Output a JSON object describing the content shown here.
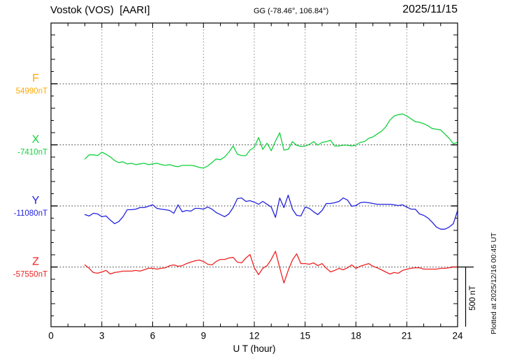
{
  "header": {
    "station": "Vostok (VOS)  [AARI]",
    "coords": "GG (-78.46°, 106.84°)",
    "date": "2025/11/15"
  },
  "axes": {
    "xlabel": "U T (hour)",
    "x_tick_hours": [
      0,
      3,
      6,
      9,
      12,
      15,
      18,
      21,
      24
    ],
    "x_range_hours": [
      0,
      24
    ],
    "minor_tick_every_hours": 1,
    "nT_tick_every": 100,
    "grid": "dotted verticals every 3 h, dotted horizontal baselines"
  },
  "channels": [
    {
      "id": "F",
      "letter": "F",
      "value_label": "54990nT",
      "color": "#ffaa00"
    },
    {
      "id": "X",
      "letter": "X",
      "value_label": "-7410nT",
      "color": "#15d03f"
    },
    {
      "id": "Y",
      "letter": "Y",
      "value_label": "-11080nT",
      "color": "#2222dd"
    },
    {
      "id": "Z",
      "letter": "Z",
      "value_label": "-57550nT",
      "color": "#ee2222"
    }
  ],
  "scale_bar": {
    "label": "500 nT",
    "nT": 500
  },
  "footer_right": "Plotted at 2025/12/16 00:45 UT",
  "chart_data": {
    "type": "line",
    "title": "Vostok (VOS)  [AARI]",
    "xlabel": "U T (hour)",
    "x_range_hours": [
      0,
      24
    ],
    "x_tick_hours": [
      0,
      3,
      6,
      9,
      12,
      15,
      18,
      21,
      24
    ],
    "y_division_nT": 500,
    "legend_position": "left margin, colored channel letters",
    "sample_start_hour": 2.0,
    "sample_step_hour": 0.25,
    "series": [
      {
        "name": "F",
        "color": "#ffaa00",
        "baseline_nT": 54990,
        "deviations_nT": []
      },
      {
        "name": "X",
        "color": "#15d03f",
        "baseline_nT": -7410,
        "deviations_nT": [
          -116,
          -82,
          -82,
          -88,
          -60,
          -77,
          -99,
          -128,
          -145,
          -139,
          -156,
          -151,
          -162,
          -156,
          -151,
          -162,
          -156,
          -151,
          -162,
          -168,
          -162,
          -173,
          -179,
          -168,
          -168,
          -168,
          -173,
          -185,
          -190,
          -173,
          -145,
          -116,
          -122,
          -99,
          -60,
          -9,
          -77,
          -88,
          -88,
          -43,
          -20,
          60,
          -37,
          14,
          -48,
          31,
          99,
          -43,
          -37,
          26,
          -3,
          -14,
          -9,
          3,
          26,
          -3,
          20,
          26,
          37,
          -9,
          -9,
          -3,
          -3,
          -9,
          -3,
          20,
          26,
          54,
          65,
          88,
          111,
          145,
          202,
          236,
          247,
          253,
          236,
          213,
          190,
          185,
          173,
          156,
          133,
          128,
          122,
          88,
          54,
          9,
          20
        ]
      },
      {
        "name": "Y",
        "color": "#2222dd",
        "baseline_nT": -11080,
        "deviations_nT": [
          -71,
          -82,
          -60,
          -65,
          -88,
          -82,
          -116,
          -145,
          -128,
          -88,
          -31,
          -31,
          -26,
          -14,
          -14,
          -3,
          9,
          -20,
          -26,
          -31,
          -37,
          -60,
          9,
          -48,
          -37,
          -43,
          -20,
          -20,
          -26,
          -9,
          -26,
          -54,
          -71,
          -88,
          -65,
          -14,
          60,
          65,
          37,
          43,
          31,
          14,
          37,
          14,
          -9,
          -94,
          65,
          -14,
          88,
          -26,
          -77,
          -82,
          -9,
          -20,
          -48,
          -71,
          -37,
          20,
          20,
          26,
          37,
          65,
          48,
          -3,
          3,
          26,
          31,
          26,
          20,
          14,
          14,
          14,
          14,
          9,
          3,
          9,
          -9,
          -26,
          -26,
          -65,
          -77,
          -99,
          -133,
          -173,
          -190,
          -190,
          -173,
          -145,
          -37
        ]
      },
      {
        "name": "Z",
        "color": "#ee2222",
        "baseline_nT": -57550,
        "deviations_nT": [
          17,
          -11,
          -45,
          -51,
          -40,
          -28,
          -57,
          -45,
          -40,
          -34,
          -34,
          -34,
          -28,
          -34,
          -23,
          -11,
          -11,
          -17,
          -11,
          -6,
          11,
          17,
          6,
          11,
          28,
          40,
          51,
          57,
          45,
          23,
          17,
          45,
          62,
          62,
          74,
          79,
          40,
          34,
          74,
          102,
          -6,
          -62,
          -11,
          11,
          62,
          129,
          -6,
          -131,
          -28,
          57,
          108,
          28,
          28,
          23,
          34,
          11,
          28,
          -11,
          -40,
          -28,
          -11,
          -23,
          -6,
          17,
          -11,
          6,
          17,
          28,
          6,
          -6,
          -23,
          -40,
          -57,
          -45,
          -51,
          -28,
          -17,
          -11,
          -6,
          -6,
          -17,
          -17,
          -17,
          -17,
          -11,
          -11,
          -6,
          0,
          0
        ]
      }
    ]
  }
}
